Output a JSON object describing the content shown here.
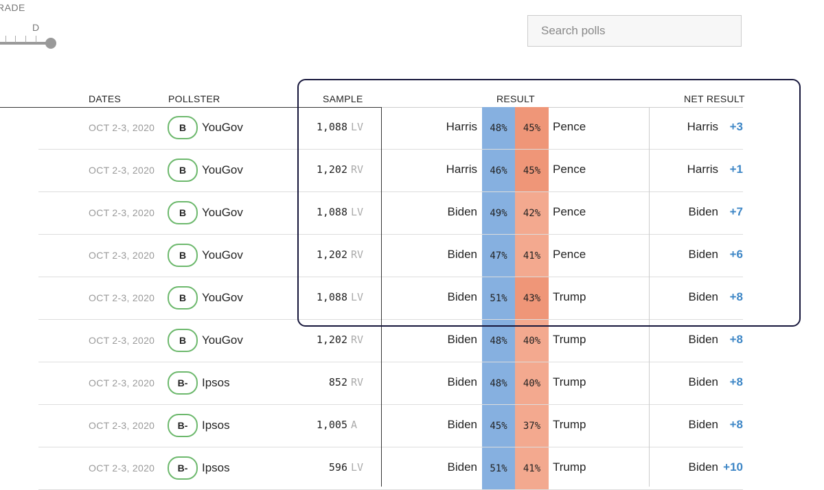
{
  "filter": {
    "grade_label": "RADE",
    "slider_grade": "D"
  },
  "search": {
    "placeholder": "Search polls"
  },
  "table": {
    "headers": {
      "dates": "DATES",
      "pollster": "POLLSTER",
      "sample": "SAMPLE",
      "result": "RESULT",
      "net_result": "NET RESULT"
    },
    "rows": [
      {
        "date": "OCT 2-3, 2020",
        "grade": "B",
        "pollster": "YouGov",
        "sample": "1,088",
        "population": "LV",
        "cand1": "Harris",
        "pct1": "48%",
        "pct2": "45%",
        "cand2": "Pence",
        "net_name": "Harris",
        "net_value": "+3"
      },
      {
        "date": "OCT 2-3, 2020",
        "grade": "B",
        "pollster": "YouGov",
        "sample": "1,202",
        "population": "RV",
        "cand1": "Harris",
        "pct1": "46%",
        "pct2": "45%",
        "cand2": "Pence",
        "net_name": "Harris",
        "net_value": "+1"
      },
      {
        "date": "OCT 2-3, 2020",
        "grade": "B",
        "pollster": "YouGov",
        "sample": "1,088",
        "population": "LV",
        "cand1": "Biden",
        "pct1": "49%",
        "pct2": "42%",
        "cand2": "Pence",
        "net_name": "Biden",
        "net_value": "+7"
      },
      {
        "date": "OCT 2-3, 2020",
        "grade": "B",
        "pollster": "YouGov",
        "sample": "1,202",
        "population": "RV",
        "cand1": "Biden",
        "pct1": "47%",
        "pct2": "41%",
        "cand2": "Pence",
        "net_name": "Biden",
        "net_value": "+6"
      },
      {
        "date": "OCT 2-3, 2020",
        "grade": "B",
        "pollster": "YouGov",
        "sample": "1,088",
        "population": "LV",
        "cand1": "Biden",
        "pct1": "51%",
        "pct2": "43%",
        "cand2": "Trump",
        "net_name": "Biden",
        "net_value": "+8"
      },
      {
        "date": "OCT 2-3, 2020",
        "grade": "B",
        "pollster": "YouGov",
        "sample": "1,202",
        "population": "RV",
        "cand1": "Biden",
        "pct1": "48%",
        "pct2": "40%",
        "cand2": "Trump",
        "net_name": "Biden",
        "net_value": "+8"
      },
      {
        "date": "OCT 2-3, 2020",
        "grade": "B-",
        "pollster": "Ipsos",
        "sample": "852",
        "population": "RV",
        "cand1": "Biden",
        "pct1": "48%",
        "pct2": "40%",
        "cand2": "Trump",
        "net_name": "Biden",
        "net_value": "+8"
      },
      {
        "date": "OCT 2-3, 2020",
        "grade": "B-",
        "pollster": "Ipsos",
        "sample": "1,005",
        "population": "A",
        "cand1": "Biden",
        "pct1": "45%",
        "pct2": "37%",
        "cand2": "Trump",
        "net_name": "Biden",
        "net_value": "+8"
      },
      {
        "date": "OCT 2-3, 2020",
        "grade": "B-",
        "pollster": "Ipsos",
        "sample": "596",
        "population": "LV",
        "cand1": "Biden",
        "pct1": "51%",
        "pct2": "41%",
        "cand2": "Trump",
        "net_name": "Biden",
        "net_value": "+10"
      }
    ]
  },
  "colors": {
    "dem_bar": "#86b0e0",
    "rep_bar": "#ef9678",
    "rep_bar_light": "#f3a98f",
    "net_value": "#3d86c6",
    "grade_border": "#6cb86c",
    "highlight_border": "#15153a"
  }
}
